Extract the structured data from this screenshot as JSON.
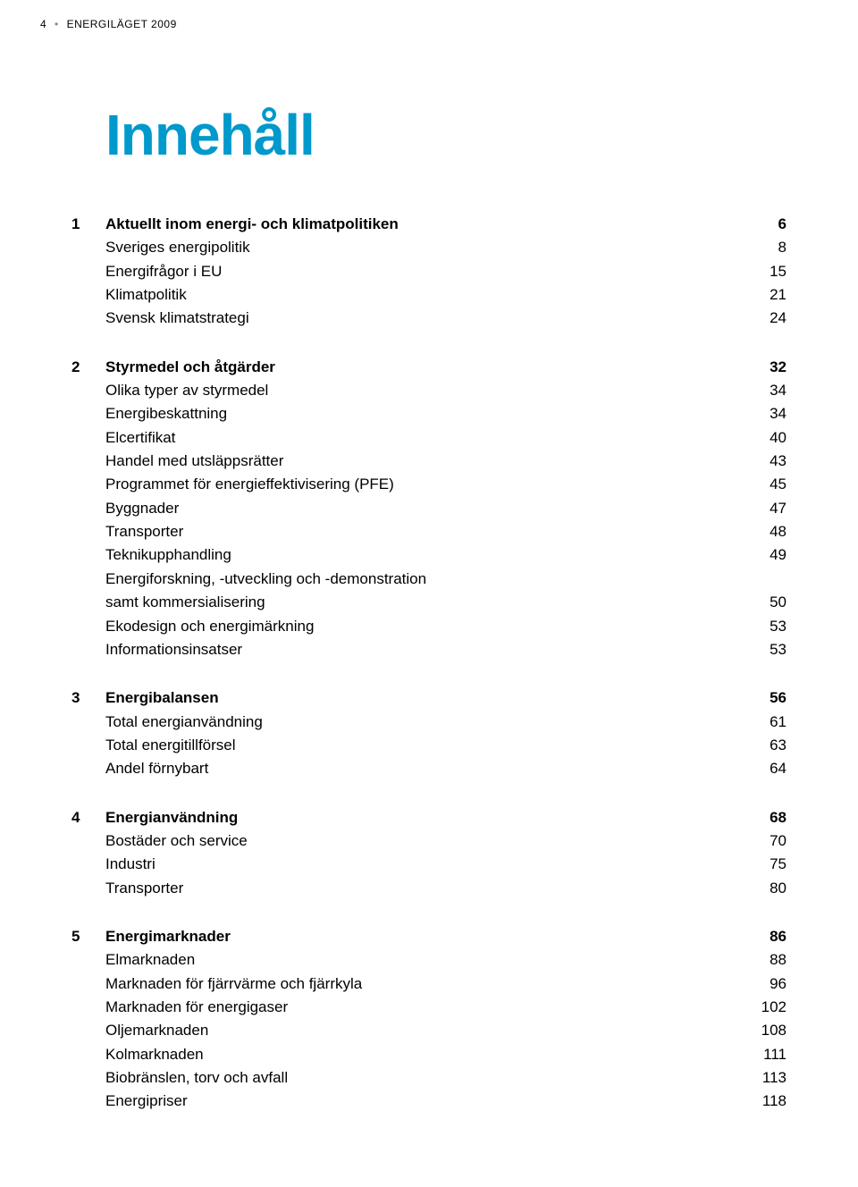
{
  "header": {
    "page_num": "4",
    "running_title": "ENERGILÄGET 2009"
  },
  "title": "Innehåll",
  "sections": [
    {
      "num": "1",
      "title": "Aktuellt inom energi- och klimatpolitiken",
      "page": "6",
      "items": [
        {
          "label": "Sveriges energipolitik",
          "page": "8"
        },
        {
          "label": "Energifrågor i EU",
          "page": "15"
        },
        {
          "label": "Klimatpolitik",
          "page": "21"
        },
        {
          "label": "Svensk klimatstrategi",
          "page": "24"
        }
      ]
    },
    {
      "num": "2",
      "title": "Styrmedel och åtgärder",
      "page": "32",
      "items": [
        {
          "label": "Olika typer av styrmedel",
          "page": "34"
        },
        {
          "label": "Energibeskattning",
          "page": "34"
        },
        {
          "label": "Elcertifikat",
          "page": "40"
        },
        {
          "label": "Handel med utsläppsrätter",
          "page": "43"
        },
        {
          "label": "Programmet för energieffektivisering (PFE)",
          "page": "45"
        },
        {
          "label": "Byggnader",
          "page": "47"
        },
        {
          "label": "Transporter",
          "page": "48"
        },
        {
          "label": "Teknikupphandling",
          "page": "49"
        },
        {
          "label": "Energiforskning, -utveckling och -demonstration",
          "cont": "samt kommersialisering",
          "page": "50"
        },
        {
          "label": "Ekodesign och energimärkning",
          "page": "53"
        },
        {
          "label": "Informationsinsatser",
          "page": "53"
        }
      ]
    },
    {
      "num": "3",
      "title": "Energibalansen",
      "page": "56",
      "items": [
        {
          "label": "Total energianvändning",
          "page": "61"
        },
        {
          "label": "Total energitillförsel",
          "page": "63"
        },
        {
          "label": "Andel förnybart",
          "page": "64"
        }
      ]
    },
    {
      "num": "4",
      "title": "Energianvändning",
      "page": "68",
      "items": [
        {
          "label": "Bostäder och service",
          "page": "70"
        },
        {
          "label": "Industri",
          "page": "75"
        },
        {
          "label": "Transporter",
          "page": "80"
        }
      ]
    },
    {
      "num": "5",
      "title": "Energimarknader",
      "page": "86",
      "items": [
        {
          "label": "Elmarknaden",
          "page": "88"
        },
        {
          "label": "Marknaden för fjärrvärme och fjärrkyla",
          "page": "96"
        },
        {
          "label": "Marknaden för energigaser",
          "page": "102"
        },
        {
          "label": "Oljemarknaden",
          "page": "108"
        },
        {
          "label": "Kolmarknaden",
          "page": "111"
        },
        {
          "label": "Biobränslen, torv och avfall",
          "page": "113"
        },
        {
          "label": "Energipriser",
          "page": "118"
        }
      ]
    }
  ]
}
